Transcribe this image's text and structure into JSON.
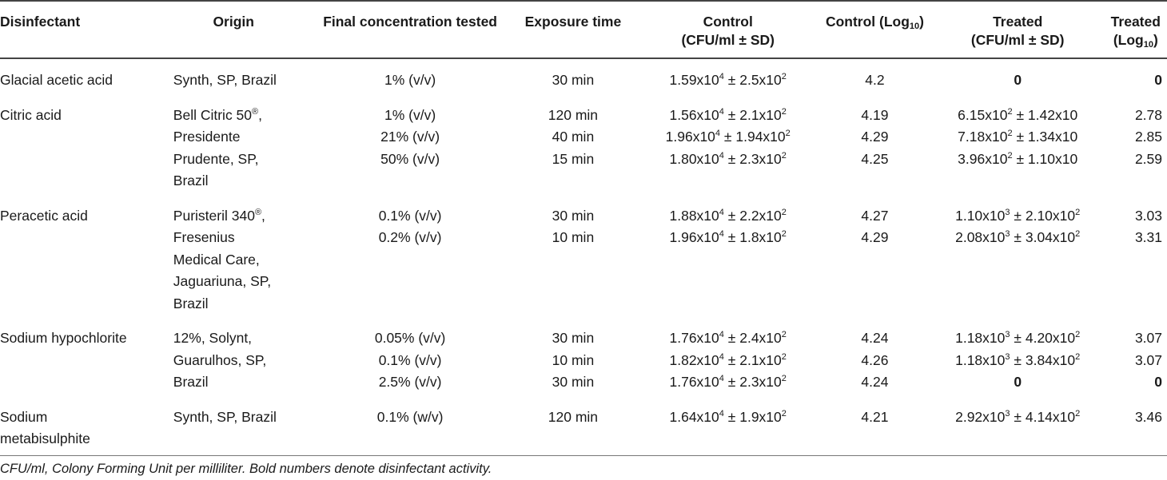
{
  "headers": {
    "disinfectant": "Disinfectant",
    "origin": "Origin",
    "final_concentration": "Final concentration tested",
    "exposure_time": "Exposure time",
    "control": "Control",
    "control_sub": "(CFU/ml ± SD)",
    "control_log": "Control (Log",
    "control_log_sub": "10",
    "control_log_close": ")",
    "treated": "Treated",
    "treated_sub": "(CFU/ml ± SD)",
    "treated_log": "Treated",
    "treated_log_open": "(Log",
    "treated_log_sub": "10",
    "treated_log_close": ")"
  },
  "rows": {
    "glacial": {
      "name": "Glacial acetic acid",
      "origin": "Synth, SP, Brazil",
      "conc": "1% (v/v)",
      "time": "30 min",
      "control_m": "1.59x10",
      "control_me": "4",
      "control_s": " ± 2.5x10",
      "control_se": "2",
      "log": "4.2",
      "treated": "0",
      "tlog": "0"
    },
    "citric": {
      "name": "Citric acid",
      "origin_1": "Bell Citric 50",
      "origin_1_sup": "®",
      "origin_1_end": ",",
      "origin_2": "Presidente",
      "origin_3": "Prudente, SP,",
      "origin_4": "Brazil",
      "conc_1": "1% (v/v)",
      "conc_2": "21% (v/v)",
      "conc_3": "50% (v/v)",
      "time_1": "120 min",
      "time_2": "40 min",
      "time_3": "15 min",
      "c1_m": "1.56x10",
      "c1_me": "4",
      "c1_s": " ± 2.1x10",
      "c1_se": "2",
      "c2_m": "1.96x10",
      "c2_me": "4",
      "c2_s": " ± 1.94x10",
      "c2_se": "2",
      "c3_m": "1.80x10",
      "c3_me": "4",
      "c3_s": " ± 2.3x10",
      "c3_se": "2",
      "log_1": "4.19",
      "log_2": "4.29",
      "log_3": "4.25",
      "t1_m": "6.15x10",
      "t1_me": "2",
      "t1_s": " ± 1.42x10",
      "t2_m": "7.18x10",
      "t2_me": "2",
      "t2_s": " ± 1.34x10",
      "t3_m": "3.96x10",
      "t3_me": "2",
      "t3_s": " ± 1.10x10",
      "tlog_1": "2.78",
      "tlog_2": "2.85",
      "tlog_3": "2.59"
    },
    "peracetic": {
      "name": "Peracetic acid",
      "origin_1": "Puristeril 340",
      "origin_1_sup": "®",
      "origin_1_end": ",",
      "origin_2": "Fresenius",
      "origin_3": "Medical Care,",
      "origin_4": "Jaguariuna, SP,",
      "origin_5": "Brazil",
      "conc_1": "0.1% (v/v)",
      "conc_2": "0.2% (v/v)",
      "time_1": "30 min",
      "time_2": "10 min",
      "c1_m": "1.88x10",
      "c1_me": "4",
      "c1_s": " ± 2.2x10",
      "c1_se": "2",
      "c2_m": "1.96x10",
      "c2_me": "4",
      "c2_s": " ± 1.8x10",
      "c2_se": "2",
      "log_1": "4.27",
      "log_2": "4.29",
      "t1_m": "1.10x10",
      "t1_me": "3",
      "t1_s": " ± 2.10x10",
      "t1_se": "2",
      "t2_m": "2.08x10",
      "t2_me": "3",
      "t2_s": " ± 3.04x10",
      "t2_se": "2",
      "tlog_1": "3.03",
      "tlog_2": "3.31"
    },
    "hypochlorite": {
      "name": "Sodium hypochlorite",
      "origin_1": "12%, Solynt,",
      "origin_2": "Guarulhos, SP,",
      "origin_3": "Brazil",
      "conc_1": "0.05% (v/v)",
      "conc_2": "0.1% (v/v)",
      "conc_3": "2.5% (v/v)",
      "time_1": "30 min",
      "time_2": "10 min",
      "time_3": "30 min",
      "c1_m": "1.76x10",
      "c1_me": "4",
      "c1_s": " ± 2.4x10",
      "c1_se": "2",
      "c2_m": "1.82x10",
      "c2_me": "4",
      "c2_s": " ± 2.1x10",
      "c2_se": "2",
      "c3_m": "1.76x10",
      "c3_me": "4",
      "c3_s": " ± 2.3x10",
      "c3_se": "2",
      "log_1": "4.24",
      "log_2": "4.26",
      "log_3": "4.24",
      "t1_m": "1.18x10",
      "t1_me": "3",
      "t1_s": " ± 4.20x10",
      "t1_se": "2",
      "t2_m": "1.18x10",
      "t2_me": "3",
      "t2_s": " ± 3.84x10",
      "t2_se": "2",
      "t3": "0",
      "tlog_1": "3.07",
      "tlog_2": "3.07",
      "tlog_3": "0"
    },
    "metabisulphite": {
      "name_1": "Sodium",
      "name_2": "metabisulphite",
      "origin": "Synth, SP, Brazil",
      "conc": "0.1% (w/v)",
      "time": "120 min",
      "c_m": "1.64x10",
      "c_me": "4",
      "c_s": " ± 1.9x10",
      "c_se": "2",
      "log": "4.21",
      "t_m": "2.92x10",
      "t_me": "3",
      "t_s": " ± 4.14x10",
      "t_se": "2",
      "tlog": "3.46"
    }
  },
  "footnote": "CFU/ml, Colony Forming Unit per milliliter. Bold numbers denote disinfectant activity."
}
